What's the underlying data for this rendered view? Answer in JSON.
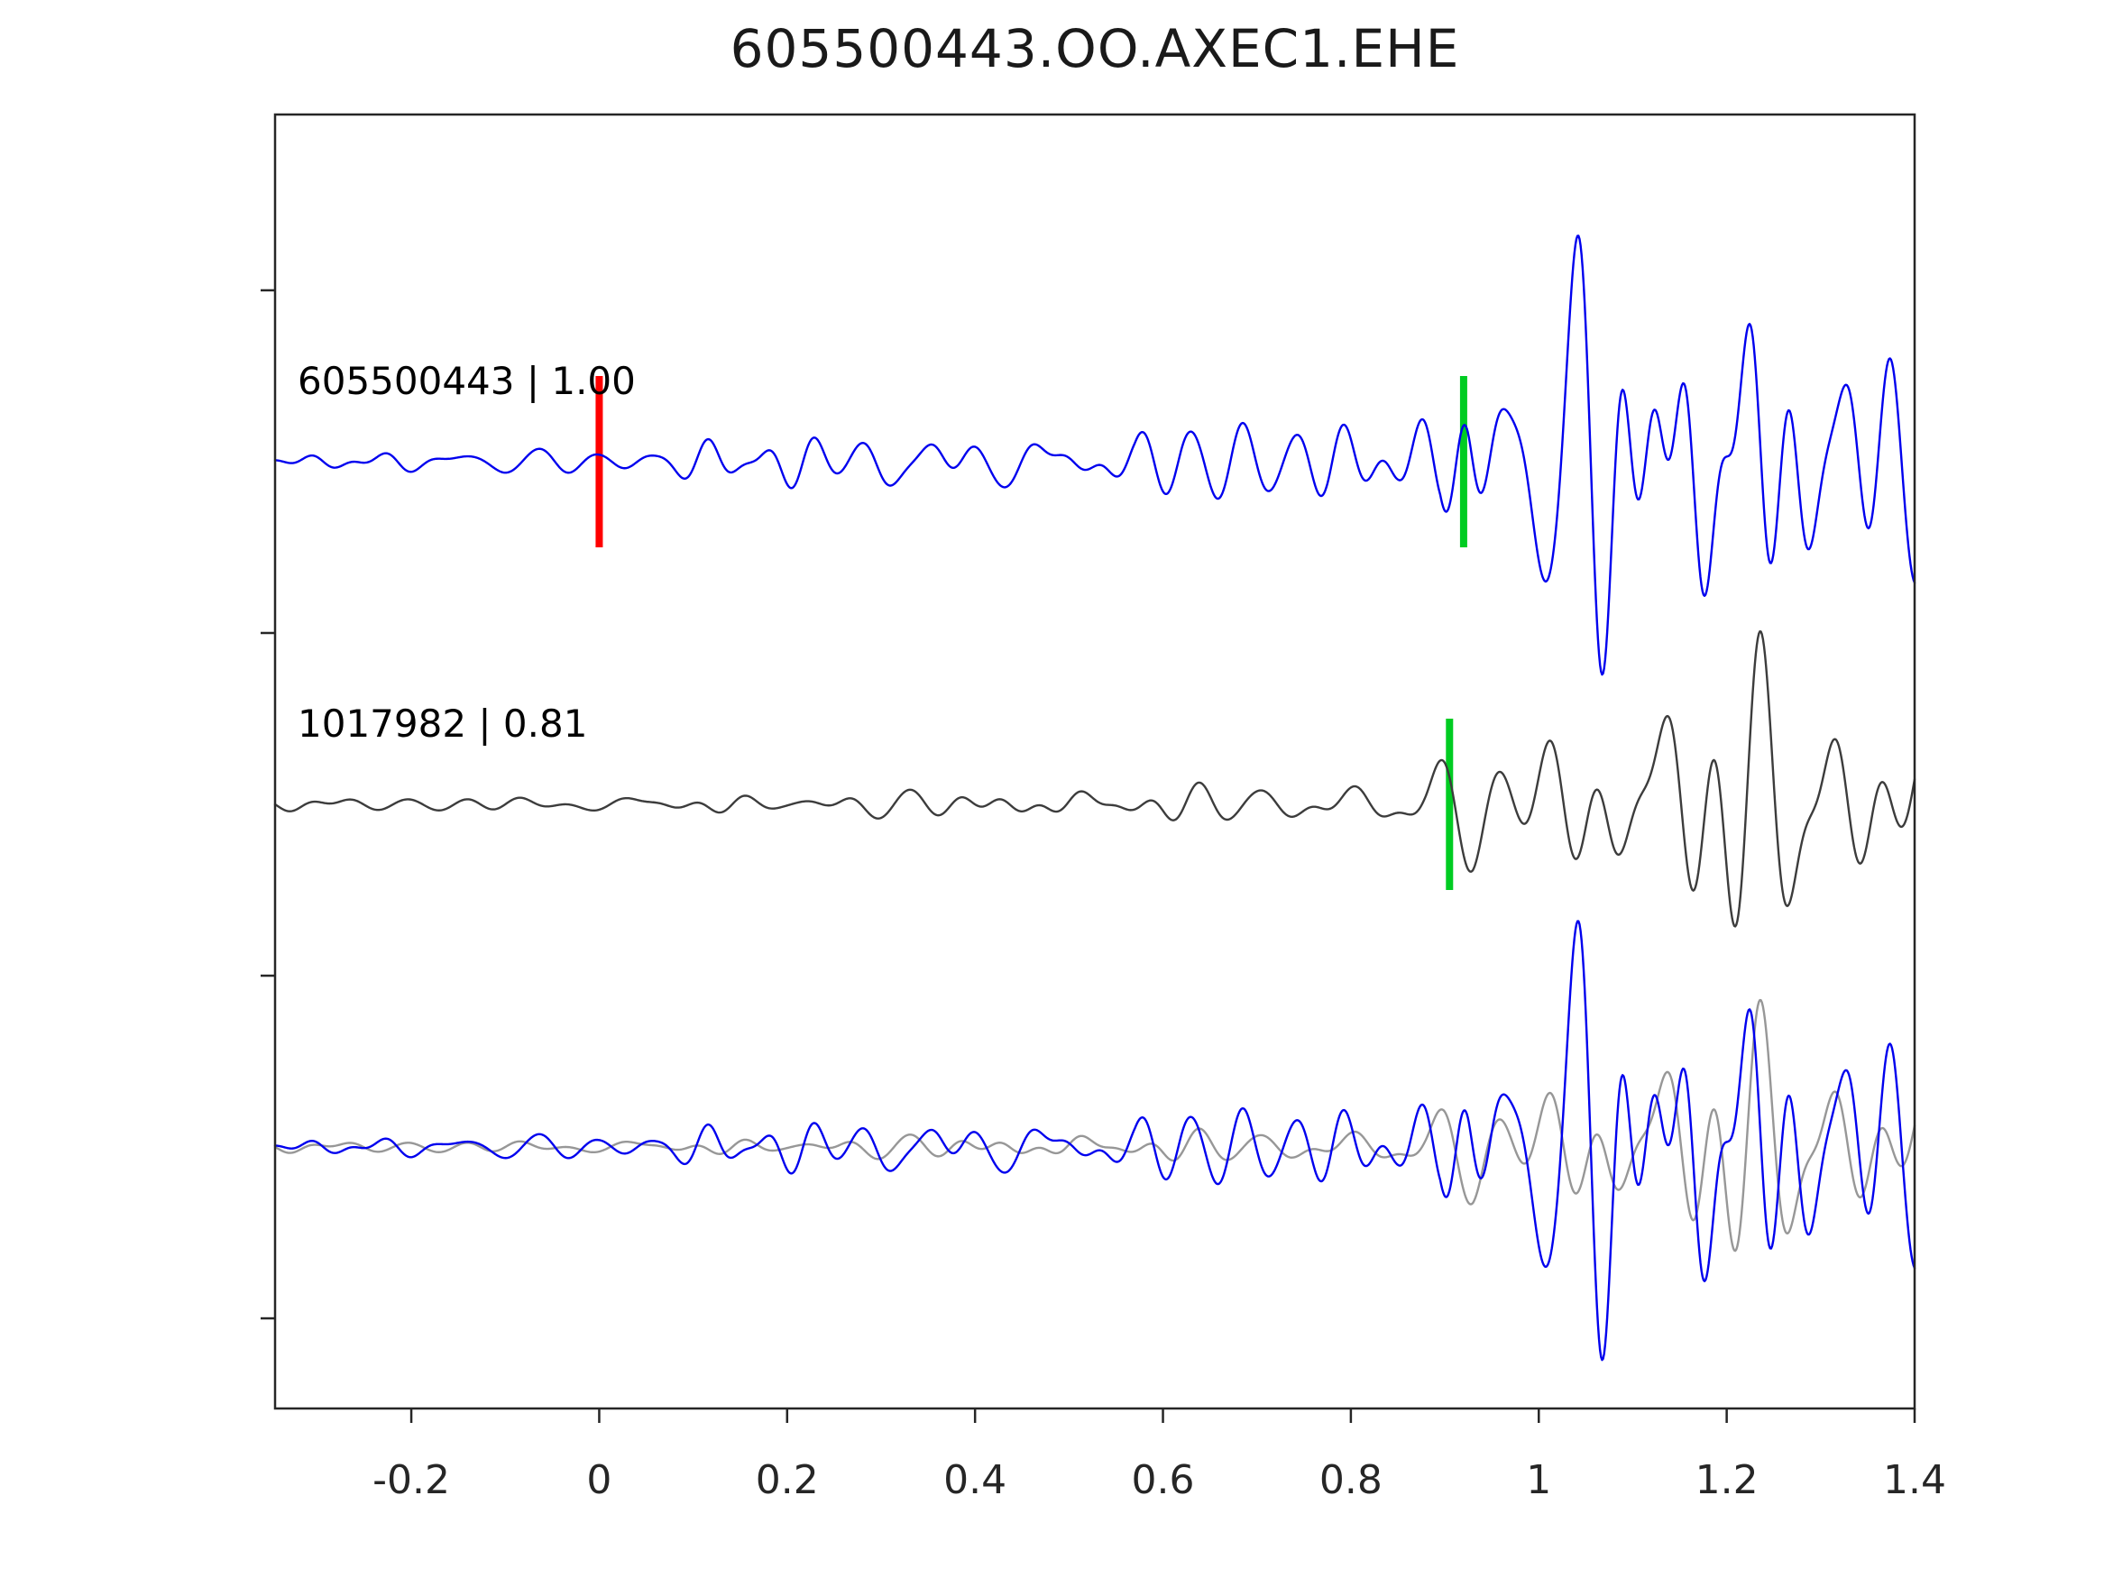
{
  "title": "605500443.OO.AXEC1.EHE",
  "chart_data": {
    "type": "line",
    "title": "605500443.OO.AXEC1.EHE",
    "xlabel": "",
    "ylabel": "",
    "xlim": [
      -0.345,
      1.4
    ],
    "ylim": [
      -0.763,
      3.013
    ],
    "grid": false,
    "legend": "none",
    "background_color": "#ffffff",
    "axis_color": "#262626",
    "x_ticks": [
      {
        "value": -0.2,
        "label": "-0.2"
      },
      {
        "value": 0,
        "label": "0"
      },
      {
        "value": 0.2,
        "label": "0.2"
      },
      {
        "value": 0.4,
        "label": "0.4"
      },
      {
        "value": 0.6,
        "label": "0.6"
      },
      {
        "value": 0.8,
        "label": "0.8"
      },
      {
        "value": 1,
        "label": "1"
      },
      {
        "value": 1.2,
        "label": "1.2"
      },
      {
        "value": 1.4,
        "label": "1.4"
      }
    ],
    "y_ticks": [
      {
        "value": -0.5,
        "label": ""
      },
      {
        "value": 0.5,
        "label": ""
      },
      {
        "value": 1.5,
        "label": ""
      },
      {
        "value": 2.5,
        "label": ""
      }
    ],
    "traces": [
      {
        "id": "template",
        "label": "605500443 | 1.00",
        "color": "#0000ee",
        "row_y": 2,
        "markers": [
          {
            "name": "origin-marker",
            "x": 0.0,
            "color": "#ff0000"
          },
          {
            "name": "pick-marker",
            "x": 0.92,
            "color": "#00cc22"
          }
        ],
        "synthesis": {
          "seed": 1337,
          "n_components": 48,
          "f_min": 7,
          "f_max": 30,
          "f_peak": 15,
          "f_width": 8,
          "envelope": [
            [
              -0.345,
              13
            ],
            [
              0.0,
              15
            ],
            [
              0.07,
              26
            ],
            [
              0.3,
              30
            ],
            [
              0.5,
              25
            ],
            [
              0.57,
              28
            ],
            [
              0.62,
              62
            ],
            [
              0.7,
              55
            ],
            [
              0.78,
              64
            ],
            [
              0.85,
              60
            ],
            [
              0.895,
              90
            ],
            [
              0.925,
              240
            ],
            [
              1.0,
              250
            ],
            [
              1.1,
              260
            ],
            [
              1.25,
              215
            ],
            [
              1.4,
              180
            ]
          ]
        }
      },
      {
        "id": "match",
        "label": "1017982 | 0.81",
        "color": "#3c3c3c",
        "row_y": 1,
        "markers": [
          {
            "name": "pick-marker",
            "x": 0.905,
            "color": "#00cc22"
          }
        ],
        "synthesis": {
          "seed": 4242,
          "n_components": 48,
          "f_min": 6,
          "f_max": 26,
          "f_peak": 13,
          "f_width": 7,
          "envelope": [
            [
              -0.345,
              10
            ],
            [
              0.0,
              12
            ],
            [
              0.2,
              16
            ],
            [
              0.4,
              18
            ],
            [
              0.55,
              22
            ],
            [
              0.7,
              30
            ],
            [
              0.8,
              40
            ],
            [
              0.88,
              55
            ],
            [
              0.93,
              120
            ],
            [
              1.0,
              170
            ],
            [
              1.08,
              235
            ],
            [
              1.18,
              260
            ],
            [
              1.3,
              255
            ],
            [
              1.4,
              190
            ]
          ]
        }
      },
      {
        "id": "overlay",
        "label": "",
        "row_y": 0,
        "markers": [],
        "components": [
          {
            "source": "match",
            "color": "#979797",
            "scale": 0.85
          },
          {
            "source": "template",
            "color": "#0000ee",
            "scale": 1.0
          }
        ]
      }
    ]
  }
}
